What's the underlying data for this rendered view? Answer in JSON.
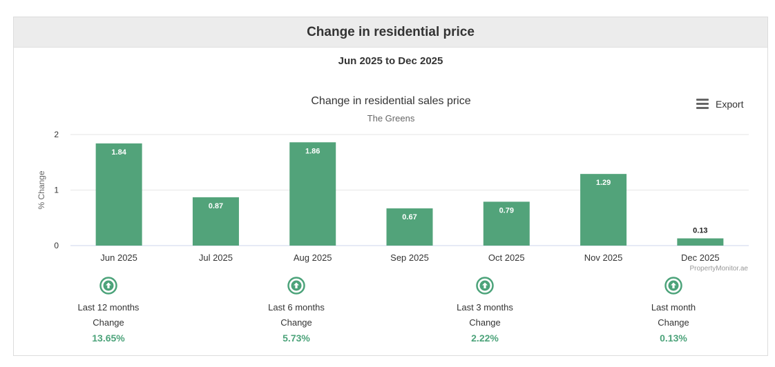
{
  "header": {
    "title": "Change in residential price"
  },
  "range_label": "Jun 2025 to Dec 2025",
  "export_label": "Export",
  "credit": "PropertyMonitor.ae",
  "colors": {
    "bar": "#52a37a",
    "accent": "#4ca37a",
    "grid": "#e6e6e6"
  },
  "chart_data": {
    "type": "bar",
    "title": "Change in residential sales price",
    "subtitle": "The Greens",
    "xlabel": "",
    "ylabel": "% Change",
    "categories": [
      "Jun 2025",
      "Jul 2025",
      "Aug 2025",
      "Sep 2025",
      "Oct 2025",
      "Nov 2025",
      "Dec 2025"
    ],
    "values": [
      1.84,
      0.87,
      1.86,
      0.67,
      0.79,
      1.29,
      0.13
    ],
    "ylim": [
      0,
      2
    ],
    "yticks": [
      0,
      1,
      2
    ],
    "grid": true
  },
  "stats": [
    {
      "period": "Last 12 months",
      "change_label": "Change",
      "value": "13.65%",
      "icon": "arrow-up-circle-icon"
    },
    {
      "period": "Last 6 months",
      "change_label": "Change",
      "value": "5.73%",
      "icon": "arrow-up-circle-icon"
    },
    {
      "period": "Last 3 months",
      "change_label": "Change",
      "value": "2.22%",
      "icon": "arrow-up-circle-icon"
    },
    {
      "period": "Last month",
      "change_label": "Change",
      "value": "0.13%",
      "icon": "arrow-up-circle-icon"
    }
  ]
}
